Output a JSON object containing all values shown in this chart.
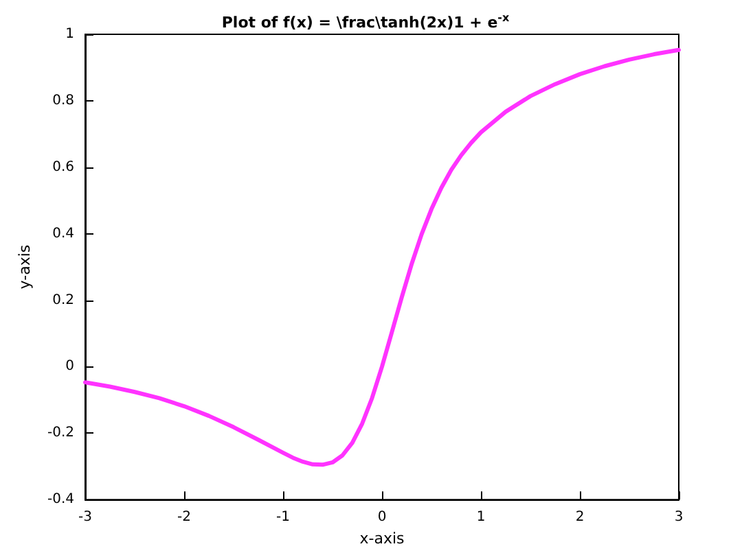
{
  "chart_data": {
    "type": "line",
    "title": "Plot of f(x) = \\frac\\tanh(2x)1 + e$^{-x}$",
    "xlabel": "x-axis",
    "ylabel": "y-axis",
    "x": [
      -3,
      -2.75,
      -2.5,
      -2.25,
      -2,
      -1.75,
      -1.5,
      -1.25,
      -1,
      -0.9,
      -0.8,
      -0.7,
      -0.6,
      -0.5,
      -0.4,
      -0.3,
      -0.2,
      -0.1,
      0,
      0.1,
      0.2,
      0.3,
      0.4,
      0.5,
      0.6,
      0.7,
      0.8,
      0.9,
      1,
      1.25,
      1.5,
      1.75,
      2,
      2.25,
      2.5,
      2.75,
      3
    ],
    "series": [
      {
        "color": "#ff33ff",
        "values": [
          -0.047,
          -0.06,
          -0.076,
          -0.095,
          -0.119,
          -0.148,
          -0.182,
          -0.22,
          -0.259,
          -0.274,
          -0.286,
          -0.294,
          -0.295,
          -0.288,
          -0.267,
          -0.229,
          -0.171,
          -0.094,
          0,
          0.104,
          0.209,
          0.309,
          0.398,
          0.474,
          0.538,
          0.592,
          0.636,
          0.673,
          0.705,
          0.767,
          0.814,
          0.85,
          0.88,
          0.904,
          0.924,
          0.94,
          0.953
        ]
      }
    ],
    "xlim": [
      -3,
      3
    ],
    "ylim": [
      -0.4,
      1
    ],
    "xticks": [
      -3,
      -2,
      -1,
      0,
      1,
      2,
      3
    ],
    "yticks": [
      -0.4,
      -0.2,
      0,
      0.2,
      0.4,
      0.6,
      0.8,
      1
    ],
    "grid": false,
    "marker": "none",
    "line_style": "solid"
  }
}
